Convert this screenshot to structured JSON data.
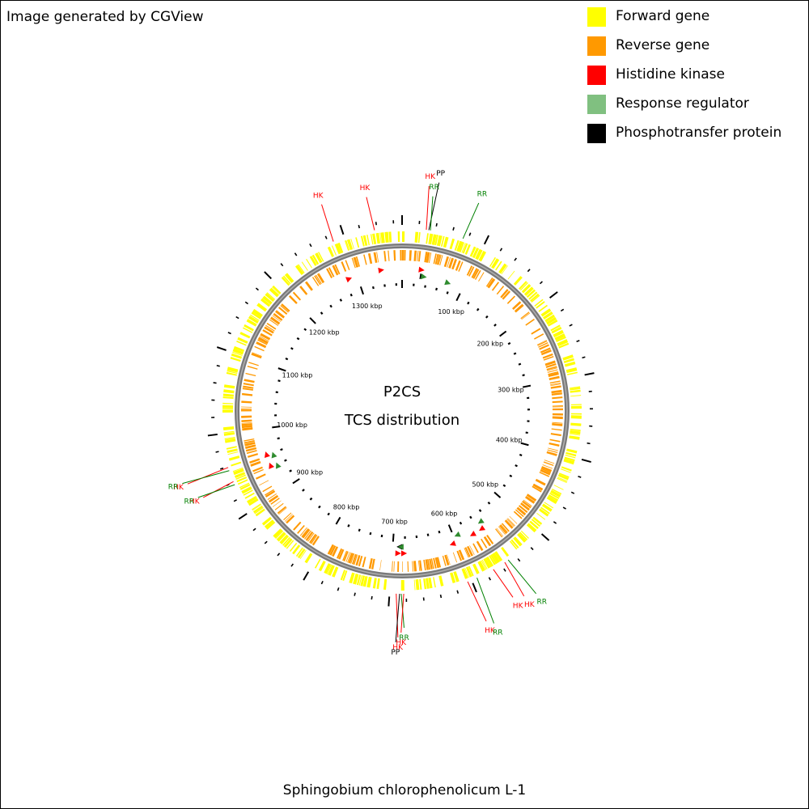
{
  "credit": "Image generated by CGView",
  "species": "Sphingobium chlorophenolicum L-1",
  "center_title": "P2CS",
  "center_subtitle": "TCS distribution",
  "legend": [
    {
      "label": "Forward gene",
      "color": "#ffff00"
    },
    {
      "label": "Reverse gene",
      "color": "#ff9900"
    },
    {
      "label": "Histidine kinase",
      "color": "#ff0000"
    },
    {
      "label": "Response regulator",
      "color": "#80c080"
    },
    {
      "label": "Phosphotransfer protein",
      "color": "#000000"
    }
  ],
  "sequence_length_kbp": 1370,
  "tick_labels": [
    "100 kbp",
    "200 kbp",
    "300 kbp",
    "400 kbp",
    "500 kbp",
    "600 kbp",
    "700 kbp",
    "800 kbp",
    "900 kbp",
    "1000 kbp",
    "1100 kbp",
    "1200 kbp",
    "1300 kbp"
  ],
  "tick_values_kbp": [
    100,
    200,
    300,
    400,
    500,
    600,
    700,
    800,
    900,
    1000,
    1100,
    1200,
    1300
  ],
  "features": [
    {
      "label": "HK",
      "type": "HK",
      "kbp": 1337,
      "strand": "forward"
    },
    {
      "label": "HK",
      "type": "HK",
      "kbp": 1286,
      "strand": "forward"
    },
    {
      "label": "HK",
      "type": "HK",
      "kbp": 29,
      "strand": "forward"
    },
    {
      "label": "PP",
      "type": "PP",
      "kbp": 32,
      "strand": "forward"
    },
    {
      "label": "RR",
      "type": "RR",
      "kbp": 34,
      "strand": "forward"
    },
    {
      "label": "RR",
      "type": "RR",
      "kbp": 74,
      "strand": "forward"
    },
    {
      "label": "HK",
      "type": "HK",
      "kbp": 959,
      "strand": "forward"
    },
    {
      "label": "RR",
      "type": "RR",
      "kbp": 955,
      "strand": "forward"
    },
    {
      "label": "HK",
      "type": "HK",
      "kbp": 941,
      "strand": "forward"
    },
    {
      "label": "RR",
      "type": "RR",
      "kbp": 937,
      "strand": "forward"
    },
    {
      "label": "HK",
      "type": "HK",
      "kbp": 692,
      "strand": "reverse"
    },
    {
      "label": "PP",
      "type": "PP",
      "kbp": 688,
      "strand": "forward"
    },
    {
      "label": "RR",
      "type": "RR",
      "kbp": 686,
      "strand": "forward"
    },
    {
      "label": "HK",
      "type": "HK",
      "kbp": 683,
      "strand": "reverse"
    },
    {
      "label": "HK",
      "type": "HK",
      "kbp": 605,
      "strand": "forward"
    },
    {
      "label": "RR",
      "type": "RR",
      "kbp": 593,
      "strand": "forward"
    },
    {
      "label": "HK",
      "type": "HK",
      "kbp": 571,
      "strand": "forward"
    },
    {
      "label": "HK",
      "type": "HK",
      "kbp": 555,
      "strand": "forward"
    },
    {
      "label": "RR",
      "type": "RR",
      "kbp": 550,
      "strand": "forward"
    }
  ]
}
